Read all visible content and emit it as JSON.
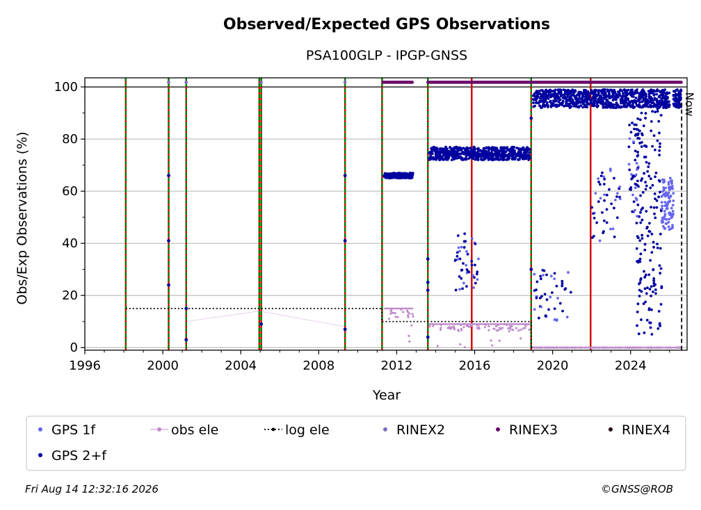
{
  "chart_data": {
    "type": "scatter",
    "title": "Observed/Expected GPS Observations",
    "subtitle": "PSA100GLP - IPGP-GNSS",
    "xlabel": "Year",
    "ylabel": "Obs/Exp Observations (%)",
    "xlim": [
      1996,
      2026.9
    ],
    "ylim": [
      -1,
      103.5
    ],
    "x_ticks": [
      1996,
      2000,
      2004,
      2008,
      2012,
      2016,
      2020,
      2024
    ],
    "y_ticks": [
      0,
      20,
      40,
      60,
      80,
      100
    ],
    "grid": "horizontal",
    "now_label": "Now",
    "now_x": 2026.62,
    "colors": {
      "gps_1f": "#6666ee",
      "gps_2f": "#0000a0",
      "obs_ele": "#c08ccc",
      "log_ele": "#000000",
      "rinex2": "#8070c0",
      "rinex3": "#6a0a6a",
      "rinex4": "#2a0a1a",
      "green_marker": "#008000",
      "red_marker": "#d00000"
    },
    "legend_placement": "bottom",
    "legend": [
      {
        "key": "gps_1f",
        "label": "GPS 1f",
        "style": "dot"
      },
      {
        "key": "obs_ele",
        "label": "obs ele",
        "style": "line-dot"
      },
      {
        "key": "log_ele",
        "label": "log ele",
        "style": "dotted"
      },
      {
        "key": "rinex2",
        "label": "RINEX2",
        "style": "dot"
      },
      {
        "key": "rinex3",
        "label": "RINEX3",
        "style": "dot"
      },
      {
        "key": "rinex4",
        "label": "RINEX4",
        "style": "dot"
      },
      {
        "key": "gps_2f",
        "label": "GPS 2+f",
        "style": "dot"
      }
    ],
    "green_events": [
      1998.1,
      2000.3,
      2001.2,
      2004.95,
      2005.05,
      2009.35,
      2011.25,
      2013.6,
      2018.9
    ],
    "red_events": [
      1998.1,
      2000.3,
      2001.2,
      2004.95,
      2005.05,
      2009.35,
      2011.25,
      2013.6,
      2015.85,
      2018.9,
      2021.95
    ],
    "log_ele": {
      "values": [
        15,
        10,
        0
      ],
      "ranges": [
        [
          1998.1,
          2011.25
        ],
        [
          2011.25,
          2018.9
        ],
        [
          2018.9,
          2026.62
        ]
      ]
    },
    "rinex2_points": [
      [
        2000.3,
        101.8
      ],
      [
        2001.2,
        101.8
      ],
      [
        2005.05,
        101.8
      ],
      [
        2009.35,
        101.8
      ]
    ],
    "rinex3_ranges": [
      [
        2011.3,
        2012.8
      ],
      [
        2013.6,
        2026.6
      ]
    ],
    "gps_spikes": [
      {
        "x": 2000.3,
        "values": [
          66,
          41,
          24
        ]
      },
      {
        "x": 2001.2,
        "values": [
          15,
          3
        ]
      },
      {
        "x": 2005.05,
        "values": [
          9
        ]
      },
      {
        "x": 2009.35,
        "values": [
          66,
          41,
          7
        ]
      },
      {
        "x": 2013.6,
        "values": [
          34,
          25,
          22,
          4
        ]
      },
      {
        "x": 2018.9,
        "values": [
          88,
          30
        ]
      }
    ],
    "gps_segments": [
      {
        "x": [
          2011.35,
          2012.85
        ],
        "y": [
          65,
          67
        ],
        "series": "gps_2f"
      },
      {
        "x": [
          2013.65,
          2018.85
        ],
        "y": [
          72,
          77
        ],
        "series": "gps_2f"
      },
      {
        "x": [
          2019.0,
          2026.0
        ],
        "y": [
          92,
          99
        ],
        "series": "gps_2f"
      },
      {
        "x": [
          2024.3,
          2025.6
        ],
        "y": [
          5,
          95
        ],
        "series": "gps_2f"
      },
      {
        "x": [
          2025.6,
          2026.2
        ],
        "y": [
          45,
          65
        ],
        "series": "gps_1f"
      },
      {
        "x": [
          2026.2,
          2026.6
        ],
        "y": [
          92,
          99
        ],
        "series": "gps_2f"
      }
    ],
    "obs_ele_segments": [
      {
        "x": [
          2011.35,
          2012.85
        ],
        "y": 15
      },
      {
        "x": [
          2013.65,
          2018.85
        ],
        "y": 9
      },
      {
        "x": [
          2019.0,
          2026.6
        ],
        "y": 0
      }
    ]
  },
  "footer": {
    "timestamp": "Fri Aug 14 12:32:16 2026",
    "credit": "©GNSS@ROB"
  }
}
